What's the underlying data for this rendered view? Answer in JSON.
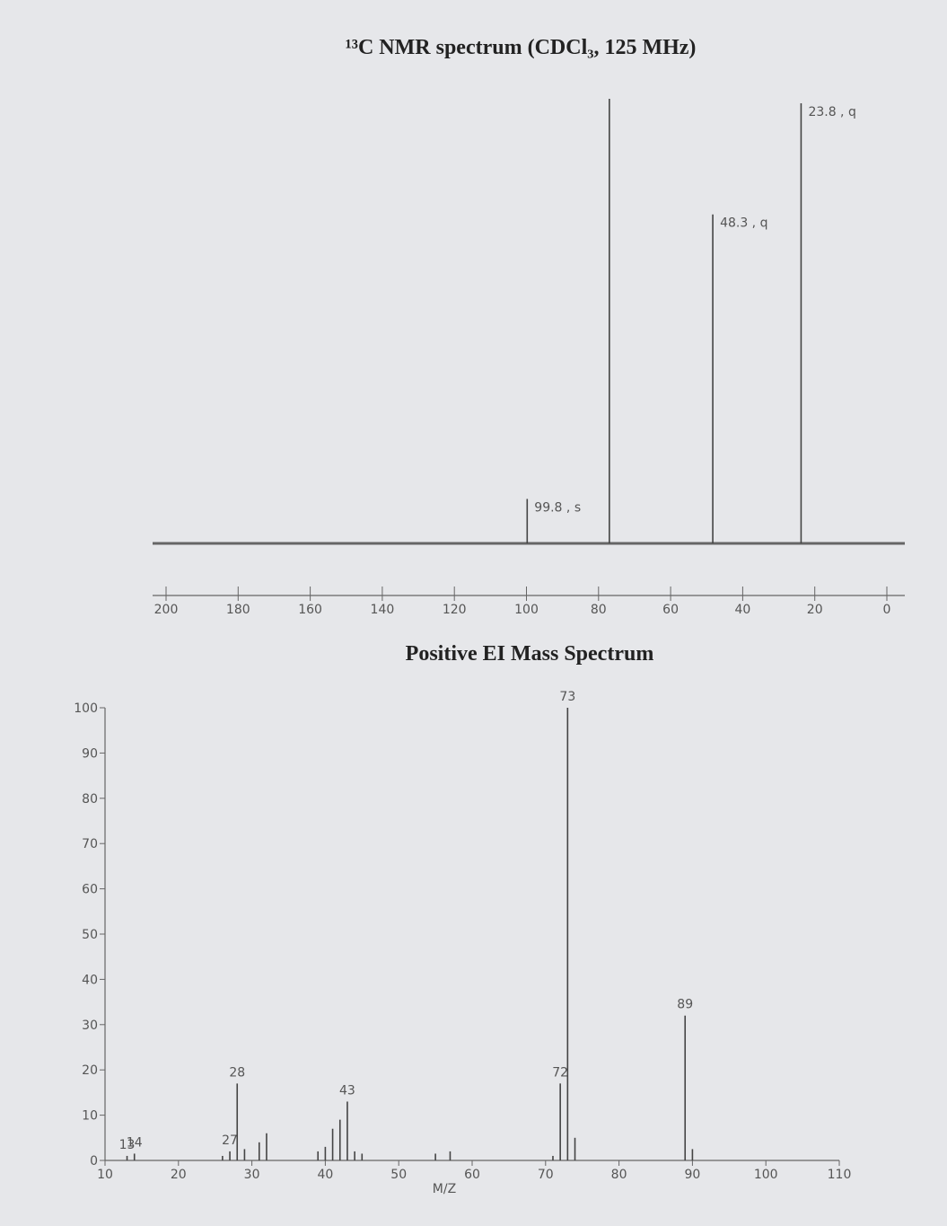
{
  "chart_data": [
    {
      "type": "stem",
      "title": "¹³C NMR spectrum (CDCl₃, 125 MHz)",
      "x": [
        99.8,
        77.0,
        48.3,
        23.8
      ],
      "values": [
        10,
        100,
        74,
        99
      ],
      "peak_labels": [
        "99.8 , s",
        null,
        "48.3 , q",
        "23.8 , q"
      ],
      "color": "#444444",
      "xlim": [
        200,
        0
      ],
      "xticks": [
        200,
        180,
        160,
        140,
        120,
        100,
        80,
        60,
        40,
        20,
        0
      ]
    },
    {
      "type": "stem",
      "title": "Positive EI Mass Spectrum",
      "x_label": "M/Z",
      "x": [
        13,
        14,
        26,
        27,
        28,
        29,
        31,
        32,
        39,
        40,
        41,
        42,
        43,
        44,
        45,
        55,
        57,
        71,
        72,
        73,
        74,
        89,
        90
      ],
      "values": [
        1,
        1.5,
        1,
        2,
        17,
        2.5,
        4,
        6,
        2,
        3,
        7,
        9,
        13,
        2,
        1.5,
        1.5,
        2,
        1,
        17,
        100,
        5,
        32,
        2.5
      ],
      "labeled": [
        true,
        true,
        false,
        true,
        true,
        false,
        false,
        false,
        false,
        false,
        false,
        false,
        true,
        false,
        false,
        false,
        false,
        false,
        true,
        true,
        false,
        true,
        false
      ],
      "color": "#444444",
      "xlim": [
        10,
        110
      ],
      "xticks": [
        10,
        20,
        30,
        40,
        50,
        60,
        70,
        80,
        90,
        100,
        110
      ],
      "ylim": [
        0,
        100
      ],
      "yticks": [
        0,
        10,
        20,
        30,
        40,
        50,
        60,
        70,
        80,
        90,
        100
      ]
    }
  ]
}
